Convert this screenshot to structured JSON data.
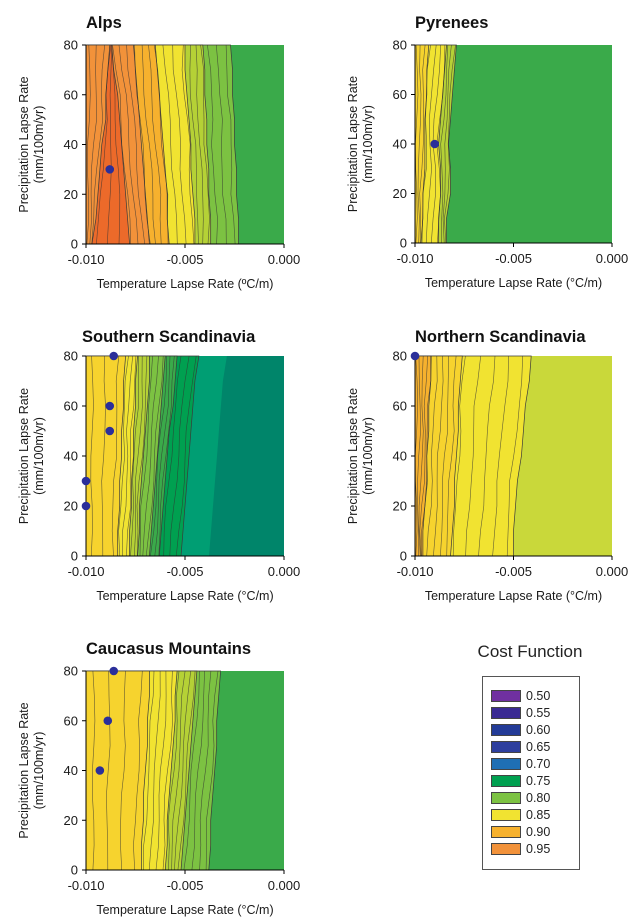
{
  "chart_data": [
    {
      "type": "contour",
      "title": "Alps",
      "xlabel": "Temperature Lapse Rate (ºC/m)",
      "ylabel_line1": "Precipitation Lapse Rate",
      "ylabel_line2": "(mm/100m/yr)",
      "xlim": [
        -0.01,
        0.0
      ],
      "ylim": [
        0,
        80
      ],
      "xticks": [
        "-0.010",
        "-0.005",
        "0.000"
      ],
      "yticks": [
        "0",
        "20",
        "40",
        "60",
        "80"
      ],
      "band_boundaries": [
        {
          "color": "#f2923a",
          "x": [
            -0.0097,
            -0.0095,
            -0.0094,
            -0.0093,
            -0.0092,
            -0.009,
            -0.009,
            -0.0089,
            -0.0088
          ]
        },
        {
          "color": "#ec6a2a",
          "x": [
            -0.0078,
            -0.0079,
            -0.008,
            -0.0081,
            -0.0082,
            -0.0083,
            -0.0084,
            -0.0086,
            -0.0087
          ]
        },
        {
          "color": "#f2923a",
          "x": [
            -0.0068,
            -0.0069,
            -0.007,
            -0.0071,
            -0.0072,
            -0.0073,
            -0.0074,
            -0.0075,
            -0.0076
          ]
        },
        {
          "color": "#f6b12e",
          "x": [
            -0.0058,
            -0.0059,
            -0.0059,
            -0.006,
            -0.0061,
            -0.0062,
            -0.0063,
            -0.0064,
            -0.0065
          ]
        },
        {
          "color": "#f1e331",
          "x": [
            -0.0045,
            -0.0045,
            -0.0046,
            -0.0047,
            -0.0047,
            -0.0048,
            -0.0049,
            -0.005,
            -0.005
          ]
        },
        {
          "color": "#b5d136",
          "x": [
            -0.0037,
            -0.0037,
            -0.0038,
            -0.0038,
            -0.0039,
            -0.0039,
            -0.004,
            -0.004,
            -0.0041
          ]
        },
        {
          "color": "#7cc242",
          "x": [
            -0.0023,
            -0.0023,
            -0.0024,
            -0.0024,
            -0.0025,
            -0.0025,
            -0.0026,
            -0.0026,
            -0.0027
          ]
        },
        {
          "color": "#3aaa4a",
          "x": [
            0,
            0,
            0,
            0,
            0,
            0,
            0,
            0,
            0
          ]
        }
      ],
      "contour_lines": 22,
      "points": [
        {
          "x": -0.0088,
          "y": 30
        }
      ]
    },
    {
      "type": "contour",
      "title": "Pyrenees",
      "xlabel": "Temperature Lapse Rate (°C/m)",
      "ylabel_line1": "Precipitation Lapse Rate",
      "ylabel_line2": "(mm/100m/yr)",
      "xlim": [
        -0.01,
        0.0
      ],
      "ylim": [
        0,
        80
      ],
      "xticks": [
        "-0.010",
        "-0.005",
        "0.000"
      ],
      "yticks": [
        "0",
        "20",
        "40",
        "60",
        "80"
      ],
      "band_boundaries": [
        {
          "color": "#f6d32e",
          "x": [
            -0.0097,
            -0.0096,
            -0.0096,
            -0.0095,
            -0.0095,
            -0.0095,
            -0.0094,
            -0.0094,
            -0.0093
          ]
        },
        {
          "color": "#f1e331",
          "x": [
            -0.0088,
            -0.0088,
            -0.0087,
            -0.0087,
            -0.0088,
            -0.0087,
            -0.0086,
            -0.0085,
            -0.0084
          ]
        },
        {
          "color": "#b5d136",
          "x": [
            -0.0084,
            -0.0084,
            -0.0082,
            -0.0082,
            -0.0083,
            -0.0082,
            -0.0081,
            -0.008,
            -0.0079
          ]
        },
        {
          "color": "#3aaa4a",
          "x": [
            0,
            0,
            0,
            0,
            0,
            0,
            0,
            0,
            0
          ]
        }
      ],
      "contour_lines": 10,
      "points": [
        {
          "x": -0.009,
          "y": 40
        }
      ]
    },
    {
      "type": "contour",
      "title": "Southern Scandinavia",
      "xlabel": "Temperature Lapse Rate (°C/m)",
      "ylabel_line1": "Precipitation Lapse Rate",
      "ylabel_line2": "(mm/100m/yr)",
      "xlim": [
        -0.01,
        0.0
      ],
      "ylim": [
        0,
        80
      ],
      "xticks": [
        "-0.010",
        "-0.005",
        "0.000"
      ],
      "yticks": [
        "0",
        "20",
        "40",
        "60",
        "80"
      ],
      "band_boundaries": [
        {
          "color": "#f6d32e",
          "x": [
            -0.0084,
            -0.0084,
            -0.0083,
            -0.0083,
            -0.0082,
            -0.0082,
            -0.0081,
            -0.0081,
            -0.008
          ]
        },
        {
          "color": "#f1e331",
          "x": [
            -0.0078,
            -0.0078,
            -0.0077,
            -0.0077,
            -0.0076,
            -0.0076,
            -0.0075,
            -0.0075,
            -0.0074
          ]
        },
        {
          "color": "#b5d136",
          "x": [
            -0.0074,
            -0.0073,
            -0.0073,
            -0.0072,
            -0.0071,
            -0.007,
            -0.0069,
            -0.0068,
            -0.0068
          ]
        },
        {
          "color": "#7cc242",
          "x": [
            -0.0068,
            -0.0067,
            -0.0066,
            -0.0065,
            -0.0064,
            -0.0063,
            -0.0062,
            -0.0061,
            -0.006
          ]
        },
        {
          "color": "#3aaa4a",
          "x": [
            -0.0063,
            -0.0062,
            -0.0061,
            -0.006,
            -0.0059,
            -0.0058,
            -0.0056,
            -0.0055,
            -0.0054
          ]
        },
        {
          "color": "#00a050",
          "x": [
            -0.0052,
            -0.0051,
            -0.005,
            -0.0049,
            -0.0048,
            -0.0047,
            -0.0046,
            -0.0045,
            -0.0043
          ]
        },
        {
          "color": "#009e73",
          "x": [
            0,
            0,
            0,
            0,
            0,
            0,
            0,
            0,
            0
          ]
        }
      ],
      "darkest_band_color": "#00856a",
      "contour_lines": 18,
      "points": [
        {
          "x": -0.0086,
          "y": 80
        },
        {
          "x": -0.0088,
          "y": 60
        },
        {
          "x": -0.0088,
          "y": 50
        },
        {
          "x": -0.01,
          "y": 30
        },
        {
          "x": -0.01,
          "y": 20
        }
      ]
    },
    {
      "type": "contour",
      "title": "Northern Scandinavia",
      "xlabel": "Temperature Lapse Rate (°C/m)",
      "ylabel_line1": "Precipitation Lapse Rate",
      "ylabel_line2": "(mm/100m/yr)",
      "xlim": [
        -0.01,
        0.0
      ],
      "ylim": [
        0,
        80
      ],
      "xticks": [
        "-0.010",
        "-0.005",
        "0.000"
      ],
      "yticks": [
        "0",
        "20",
        "40",
        "60",
        "80"
      ],
      "band_boundaries": [
        {
          "color": "#f6b12e",
          "x": [
            -0.0096,
            -0.0096,
            -0.0095,
            -0.0094,
            -0.0094,
            -0.0093,
            -0.0093,
            -0.0092,
            -0.0092
          ]
        },
        {
          "color": "#f6d32e",
          "x": [
            -0.0082,
            -0.0081,
            -0.008,
            -0.008,
            -0.0079,
            -0.0078,
            -0.0078,
            -0.0077,
            -0.0076
          ]
        },
        {
          "color": "#f1e331",
          "x": [
            -0.005,
            -0.005,
            -0.0049,
            -0.0048,
            -0.0046,
            -0.0045,
            -0.0044,
            -0.0042,
            -0.0041
          ]
        },
        {
          "color": "#c9d83a",
          "x": [
            0,
            0,
            0,
            0,
            0,
            0,
            0,
            0,
            0
          ]
        }
      ],
      "contour_lines": 14,
      "points": [
        {
          "x": -0.01,
          "y": 80
        }
      ]
    },
    {
      "type": "contour",
      "title": "Caucasus Mountains",
      "xlabel": "Temperature Lapse Rate (°C/m)",
      "ylabel_line1": "Precipitation Lapse Rate",
      "ylabel_line2": "(mm/100m/yr)",
      "xlim": [
        -0.01,
        0.0
      ],
      "ylim": [
        0,
        80
      ],
      "xticks": [
        "-0.010",
        "-0.005",
        "0.000"
      ],
      "yticks": [
        "0",
        "20",
        "40",
        "60",
        "80"
      ],
      "band_boundaries": [
        {
          "color": "#f6d32e",
          "x": [
            -0.0072,
            -0.0072,
            -0.0071,
            -0.0071,
            -0.007,
            -0.0069,
            -0.0069,
            -0.0068,
            -0.0068
          ]
        },
        {
          "color": "#f1e331",
          "x": [
            -0.006,
            -0.0059,
            -0.0059,
            -0.0058,
            -0.0057,
            -0.0056,
            -0.0055,
            -0.0055,
            -0.0054
          ]
        },
        {
          "color": "#b5d136",
          "x": [
            -0.0052,
            -0.0051,
            -0.005,
            -0.0049,
            -0.0048,
            -0.0047,
            -0.0046,
            -0.0045,
            -0.0044
          ]
        },
        {
          "color": "#7cc242",
          "x": [
            -0.0038,
            -0.0037,
            -0.0037,
            -0.0036,
            -0.0035,
            -0.0034,
            -0.0034,
            -0.0033,
            -0.0032
          ]
        },
        {
          "color": "#3aaa4a",
          "x": [
            0,
            0,
            0,
            0,
            0,
            0,
            0,
            0,
            0
          ]
        }
      ],
      "contour_lines": 16,
      "points": [
        {
          "x": -0.0086,
          "y": 80
        },
        {
          "x": -0.0089,
          "y": 60
        },
        {
          "x": -0.0093,
          "y": 40
        }
      ]
    }
  ],
  "legend": {
    "title": "Cost Function",
    "items": [
      {
        "label": "0.50",
        "color": "#7030a0"
      },
      {
        "label": "0.55",
        "color": "#3a2a93"
      },
      {
        "label": "0.60",
        "color": "#233b97"
      },
      {
        "label": "0.65",
        "color": "#2e3f9e"
      },
      {
        "label": "0.70",
        "color": "#1f6fb4"
      },
      {
        "label": "0.75",
        "color": "#00a050"
      },
      {
        "label": "0.80",
        "color": "#7cc242"
      },
      {
        "label": "0.85",
        "color": "#f1e331"
      },
      {
        "label": "0.90",
        "color": "#f6b12e"
      },
      {
        "label": "0.95",
        "color": "#f2923a"
      }
    ]
  },
  "marker_color": "#2b2f9a"
}
